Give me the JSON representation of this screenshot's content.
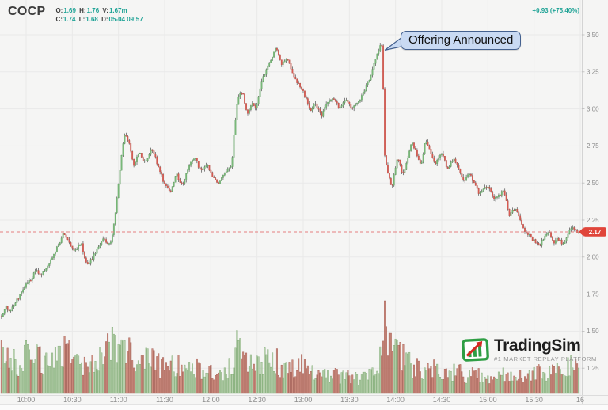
{
  "header": {
    "symbol": "COCP",
    "ohlc": {
      "o_label": "O:",
      "o": "1.69",
      "h_label": "H:",
      "h": "1.76",
      "v_label": "V:",
      "v": "1.67m",
      "c_label": "C:",
      "c": "1.74",
      "l_label": "L:",
      "l": "1.68",
      "d_label": "D:",
      "d": "05-04 09:57"
    },
    "change": "+0.93 (+75.40%)"
  },
  "annotation": {
    "text": "Offering Announced"
  },
  "logo": {
    "name": "TradingSim",
    "tagline": "#1 MARKET REPLAY PLATFORM"
  },
  "colors": {
    "up": "#79b979",
    "up_border": "#5a9a5a",
    "down": "#d95b52",
    "down_border": "#b44a42",
    "wick": "#4d4d4d",
    "vol_up": "#a9c79e",
    "vol_up_border": "#7aa86f",
    "vol_down": "#c4796a",
    "vol_down_border": "#a0584e",
    "grid": "#e9e9e9",
    "axis_text": "#8c8c8c",
    "separator": "#d4d4d4",
    "teal": "#1fa396",
    "last_line": "#e57f7f",
    "tag_bg": "#e0453a",
    "tag_text": "#ffffff",
    "callout_bg": "#c9daf3",
    "callout_border": "#44618f"
  },
  "chart_data": {
    "type": "candlestick",
    "symbol": "COCP",
    "interval": "1m",
    "title": "COCP intraday 1-minute candlestick chart with volume",
    "session_start": "09:44",
    "session_end": "15:59",
    "price_ticks": [
      3.5,
      3.25,
      3.0,
      2.75,
      2.5,
      2.25,
      2.0,
      1.75,
      1.5,
      1.25
    ],
    "time_ticks": [
      "10:00",
      "10:30",
      "11:00",
      "11:30",
      "12:00",
      "12:30",
      "13:00",
      "13:30",
      "14:00",
      "14:30",
      "15:00",
      "15:30",
      "16"
    ],
    "ylim": [
      1.06,
      3.73
    ],
    "grid": true,
    "last_price": 2.17,
    "last_price_label": "2.17",
    "change_text": "+0.93 (+75.40%)",
    "annotations": [
      {
        "text": "Offering Announced",
        "time": "13:52",
        "price": 3.45
      }
    ],
    "price_path": [
      [
        "09:44",
        1.6
      ],
      [
        "09:47",
        1.66
      ],
      [
        "09:50",
        1.63
      ],
      [
        "09:55",
        1.72
      ],
      [
        "10:00",
        1.81
      ],
      [
        "10:04",
        1.86
      ],
      [
        "10:07",
        1.91
      ],
      [
        "10:10",
        1.87
      ],
      [
        "10:15",
        1.95
      ],
      [
        "10:20",
        2.05
      ],
      [
        "10:25",
        2.16
      ],
      [
        "10:28",
        2.1
      ],
      [
        "10:32",
        2.04
      ],
      [
        "10:36",
        2.1
      ],
      [
        "10:40",
        1.94
      ],
      [
        "10:45",
        2.02
      ],
      [
        "10:50",
        2.12
      ],
      [
        "10:55",
        2.08
      ],
      [
        "10:58",
        2.25
      ],
      [
        "11:01",
        2.55
      ],
      [
        "11:04",
        2.83
      ],
      [
        "11:07",
        2.78
      ],
      [
        "11:10",
        2.62
      ],
      [
        "11:14",
        2.7
      ],
      [
        "11:18",
        2.63
      ],
      [
        "11:22",
        2.74
      ],
      [
        "11:26",
        2.62
      ],
      [
        "11:30",
        2.5
      ],
      [
        "11:34",
        2.44
      ],
      [
        "11:38",
        2.56
      ],
      [
        "11:42",
        2.48
      ],
      [
        "11:46",
        2.62
      ],
      [
        "11:50",
        2.67
      ],
      [
        "11:54",
        2.58
      ],
      [
        "11:58",
        2.62
      ],
      [
        "12:02",
        2.53
      ],
      [
        "12:06",
        2.5
      ],
      [
        "12:10",
        2.58
      ],
      [
        "12:14",
        2.62
      ],
      [
        "12:16",
        2.9
      ],
      [
        "12:18",
        3.08
      ],
      [
        "12:21",
        3.12
      ],
      [
        "12:24",
        2.96
      ],
      [
        "12:27",
        3.05
      ],
      [
        "12:30",
        3.0
      ],
      [
        "12:33",
        3.18
      ],
      [
        "12:36",
        3.25
      ],
      [
        "12:40",
        3.35
      ],
      [
        "12:43",
        3.42
      ],
      [
        "12:46",
        3.3
      ],
      [
        "12:50",
        3.35
      ],
      [
        "12:54",
        3.22
      ],
      [
        "12:58",
        3.16
      ],
      [
        "13:02",
        3.08
      ],
      [
        "13:05",
        2.98
      ],
      [
        "13:08",
        3.05
      ],
      [
        "13:12",
        2.95
      ],
      [
        "13:16",
        3.04
      ],
      [
        "13:20",
        3.08
      ],
      [
        "13:24",
        3.0
      ],
      [
        "13:28",
        3.06
      ],
      [
        "13:32",
        3.0
      ],
      [
        "13:36",
        3.04
      ],
      [
        "13:40",
        3.12
      ],
      [
        "13:44",
        3.22
      ],
      [
        "13:48",
        3.35
      ],
      [
        "13:51",
        3.44
      ],
      [
        "13:52",
        3.42
      ],
      [
        "13:53",
        2.72
      ],
      [
        "13:55",
        2.58
      ],
      [
        "13:58",
        2.47
      ],
      [
        "14:00",
        2.58
      ],
      [
        "14:02",
        2.68
      ],
      [
        "14:05",
        2.55
      ],
      [
        "14:08",
        2.65
      ],
      [
        "14:11",
        2.78
      ],
      [
        "14:14",
        2.7
      ],
      [
        "14:17",
        2.62
      ],
      [
        "14:20",
        2.8
      ],
      [
        "14:23",
        2.72
      ],
      [
        "14:26",
        2.62
      ],
      [
        "14:30",
        2.71
      ],
      [
        "14:34",
        2.6
      ],
      [
        "14:38",
        2.66
      ],
      [
        "14:42",
        2.58
      ],
      [
        "14:45",
        2.5
      ],
      [
        "14:48",
        2.57
      ],
      [
        "14:52",
        2.49
      ],
      [
        "14:55",
        2.42
      ],
      [
        "14:58",
        2.46
      ],
      [
        "15:01",
        2.47
      ],
      [
        "15:04",
        2.38
      ],
      [
        "15:08",
        2.42
      ],
      [
        "15:11",
        2.45
      ],
      [
        "15:14",
        2.28
      ],
      [
        "15:18",
        2.33
      ],
      [
        "15:21",
        2.26
      ],
      [
        "15:25",
        2.16
      ],
      [
        "15:28",
        2.14
      ],
      [
        "15:31",
        2.1
      ],
      [
        "15:34",
        2.07
      ],
      [
        "15:37",
        2.14
      ],
      [
        "15:40",
        2.18
      ],
      [
        "15:43",
        2.1
      ],
      [
        "15:46",
        2.12
      ],
      [
        "15:49",
        2.09
      ],
      [
        "15:52",
        2.15
      ],
      [
        "15:55",
        2.21
      ],
      [
        "15:57",
        2.18
      ],
      [
        "15:59",
        2.17
      ]
    ],
    "volume_profile": [
      [
        "09:44",
        40
      ],
      [
        "09:50",
        35
      ],
      [
        "09:56",
        30
      ],
      [
        "10:02",
        45
      ],
      [
        "10:08",
        38
      ],
      [
        "10:14",
        30
      ],
      [
        "10:20",
        42
      ],
      [
        "10:26",
        48
      ],
      [
        "10:32",
        38
      ],
      [
        "10:38",
        30
      ],
      [
        "10:44",
        34
      ],
      [
        "10:50",
        45
      ],
      [
        "10:56",
        60
      ],
      [
        "11:02",
        55
      ],
      [
        "11:08",
        40
      ],
      [
        "11:14",
        32
      ],
      [
        "11:20",
        38
      ],
      [
        "11:26",
        30
      ],
      [
        "11:32",
        26
      ],
      [
        "11:38",
        30
      ],
      [
        "11:44",
        24
      ],
      [
        "11:50",
        28
      ],
      [
        "11:56",
        22
      ],
      [
        "12:02",
        26
      ],
      [
        "12:08",
        22
      ],
      [
        "12:14",
        30
      ],
      [
        "12:17",
        62
      ],
      [
        "12:20",
        48
      ],
      [
        "12:24",
        35
      ],
      [
        "12:30",
        30
      ],
      [
        "12:36",
        38
      ],
      [
        "12:42",
        35
      ],
      [
        "12:48",
        28
      ],
      [
        "12:54",
        25
      ],
      [
        "13:00",
        30
      ],
      [
        "13:06",
        22
      ],
      [
        "13:12",
        18
      ],
      [
        "13:18",
        22
      ],
      [
        "13:24",
        17
      ],
      [
        "13:30",
        20
      ],
      [
        "13:36",
        16
      ],
      [
        "13:42",
        22
      ],
      [
        "13:48",
        30
      ],
      [
        "13:52",
        40
      ],
      [
        "13:53",
        95
      ],
      [
        "13:54",
        65
      ],
      [
        "13:56",
        50
      ],
      [
        "13:58",
        40
      ],
      [
        "14:02",
        48
      ],
      [
        "14:06",
        35
      ],
      [
        "14:10",
        30
      ],
      [
        "14:16",
        26
      ],
      [
        "14:22",
        30
      ],
      [
        "14:28",
        24
      ],
      [
        "14:34",
        20
      ],
      [
        "14:40",
        24
      ],
      [
        "14:46",
        18
      ],
      [
        "14:52",
        22
      ],
      [
        "14:58",
        18
      ],
      [
        "15:04",
        16
      ],
      [
        "15:10",
        20
      ],
      [
        "15:16",
        16
      ],
      [
        "15:22",
        18
      ],
      [
        "15:28",
        22
      ],
      [
        "15:34",
        26
      ],
      [
        "15:40",
        20
      ],
      [
        "15:46",
        24
      ],
      [
        "15:52",
        30
      ],
      [
        "15:56",
        38
      ],
      [
        "15:59",
        34
      ]
    ],
    "volume_spikes": [
      [
        "13:53",
        100
      ],
      [
        "13:54",
        72
      ],
      [
        "13:56",
        65
      ],
      [
        "14:02",
        52
      ],
      [
        "12:17",
        68
      ],
      [
        "10:57",
        64
      ],
      [
        "11:02",
        58
      ]
    ]
  }
}
